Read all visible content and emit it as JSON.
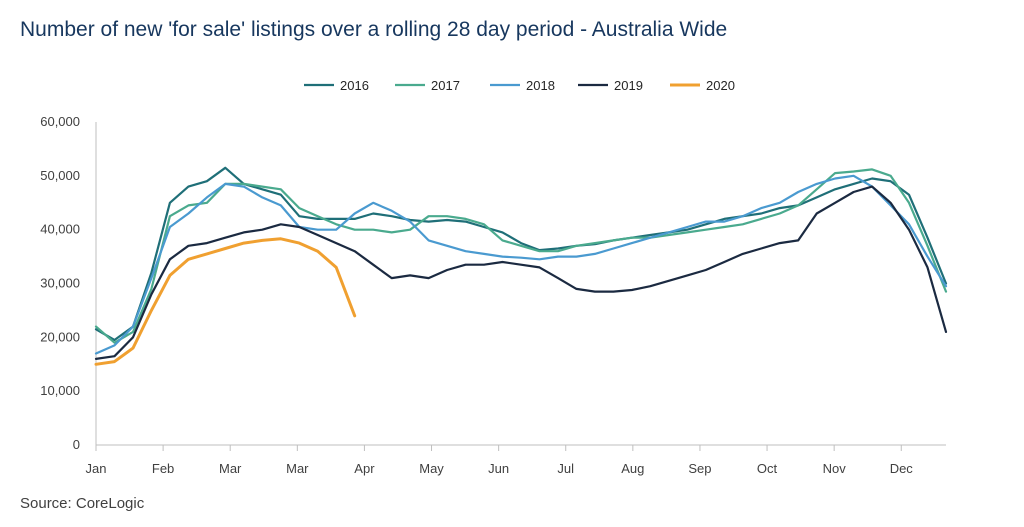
{
  "title": "Number of new 'for sale' listings over a rolling 28 day period - Australia Wide",
  "source": "Source: CoreLogic",
  "chart_data": {
    "type": "line",
    "title": "Number of new 'for sale' listings over a rolling 28 day period - Australia Wide",
    "xlabel": "",
    "ylabel": "",
    "ylim": [
      0,
      60000
    ],
    "yticks": [
      0,
      10000,
      20000,
      30000,
      40000,
      50000,
      60000
    ],
    "ytick_labels": [
      "0",
      "10,000",
      "20,000",
      "30,000",
      "40,000",
      "50,000",
      "60,000"
    ],
    "x_tick_labels": [
      "Jan",
      "Feb",
      "Mar",
      "Mar",
      "Apr",
      "May",
      "Jun",
      "Jul",
      "Aug",
      "Sep",
      "Oct",
      "Nov",
      "Dec"
    ],
    "x_tick_positions": [
      0,
      3,
      6,
      9,
      12,
      15,
      18,
      21,
      24,
      27,
      30,
      33,
      36
    ],
    "x_max": 38,
    "grid": false,
    "legend_position": "top",
    "series": [
      {
        "name": "2016",
        "color": "#1f6f78",
        "values": [
          21500,
          19500,
          22000,
          32000,
          45000,
          48000,
          49000,
          51500,
          48500,
          47500,
          46500,
          42500,
          42000,
          42000,
          42000,
          43000,
          42500,
          41800,
          41500,
          41800,
          41500,
          40500,
          39500,
          37500,
          36200,
          36500,
          37000,
          37300,
          38000,
          38500,
          39000,
          39500,
          40000,
          41000,
          42000,
          42500,
          43000,
          44000,
          44500,
          46000,
          47500,
          48500,
          49500,
          49000,
          46500,
          38500,
          30000
        ]
      },
      {
        "name": "2017",
        "color": "#4aaa8e",
        "values": [
          22000,
          19000,
          21000,
          29000,
          42500,
          44500,
          45000,
          48500,
          48500,
          48000,
          47500,
          44000,
          42500,
          41000,
          40000,
          40000,
          39500,
          40000,
          42500,
          42500,
          42000,
          41000,
          38000,
          37000,
          36000,
          36000,
          37000,
          37500,
          38000,
          38500,
          38500,
          39000,
          39500,
          40000,
          40500,
          41000,
          42000,
          43000,
          44500,
          47500,
          50500,
          50800,
          51200,
          50000,
          45000,
          37000,
          28500
        ]
      },
      {
        "name": "2018",
        "color": "#4a9ad0",
        "values": [
          17000,
          18500,
          22000,
          31000,
          40500,
          43000,
          46000,
          48500,
          48000,
          46000,
          44500,
          40500,
          40000,
          40000,
          43000,
          45000,
          43500,
          41500,
          38000,
          37000,
          36000,
          35500,
          35000,
          34800,
          34500,
          35000,
          35000,
          35500,
          36500,
          37500,
          38500,
          39500,
          40500,
          41500,
          41500,
          42500,
          44000,
          45000,
          47000,
          48500,
          49500,
          50000,
          48000,
          44500,
          41000,
          35000,
          29500
        ]
      },
      {
        "name": "2019",
        "color": "#1b2a41",
        "values": [
          16000,
          16500,
          20000,
          28000,
          34500,
          37000,
          37500,
          38500,
          39500,
          40000,
          41000,
          40500,
          39000,
          37500,
          36000,
          33500,
          31000,
          31500,
          31000,
          32500,
          33500,
          33500,
          34000,
          33500,
          33000,
          31000,
          29000,
          28500,
          28500,
          28800,
          29500,
          30500,
          31500,
          32500,
          34000,
          35500,
          36500,
          37500,
          38000,
          43000,
          45000,
          47000,
          48000,
          45000,
          40000,
          33000,
          21000
        ]
      },
      {
        "name": "2020",
        "color": "#f0a030",
        "values": [
          15000,
          15500,
          18000,
          25000,
          31500,
          34500,
          35500,
          36500,
          37500,
          38000,
          38300,
          37500,
          36000,
          33000,
          24000
        ]
      }
    ]
  }
}
